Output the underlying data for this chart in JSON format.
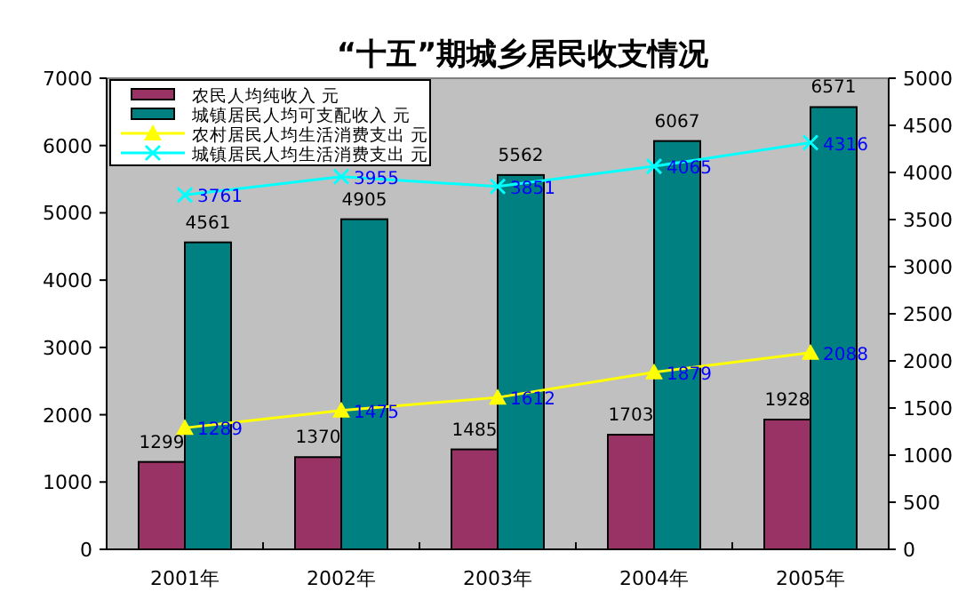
{
  "chart_data": {
    "type": "bar",
    "title": "“十五”期城乡居民收支情况",
    "categories": [
      "2001年",
      "2002年",
      "2003年",
      "2004年",
      "2005年"
    ],
    "series": [
      {
        "name": "农民人均纯收入  元",
        "color": "#993366",
        "values": [
          1299,
          1370,
          1485,
          1703,
          1928
        ]
      },
      {
        "name": "城镇居民人均可支配收入  元",
        "color": "#008080",
        "values": [
          4561,
          4905,
          5562,
          6067,
          6571
        ]
      },
      {
        "name": "农村居民人均生活消费支出  元",
        "type": "line",
        "axis": "y2",
        "marker": "triangle",
        "color": "#ffff00",
        "values": [
          1289,
          1475,
          1612,
          1879,
          2088
        ]
      },
      {
        "name": "城镇居民人均生活消费支出  元",
        "type": "line",
        "axis": "y2",
        "marker": "cross",
        "color": "#00ffff",
        "values": [
          3761,
          3955,
          3851,
          4065,
          4316
        ]
      }
    ],
    "ylim": [
      0,
      7000
    ],
    "yticks": [
      0,
      1000,
      2000,
      3000,
      4000,
      5000,
      6000,
      7000
    ],
    "y2lim": [
      0,
      5000
    ],
    "y2ticks": [
      0,
      500,
      1000,
      1500,
      2000,
      2500,
      3000,
      3500,
      4000,
      4500,
      5000
    ],
    "data_labels": true,
    "legend": "top left",
    "grid": false
  }
}
